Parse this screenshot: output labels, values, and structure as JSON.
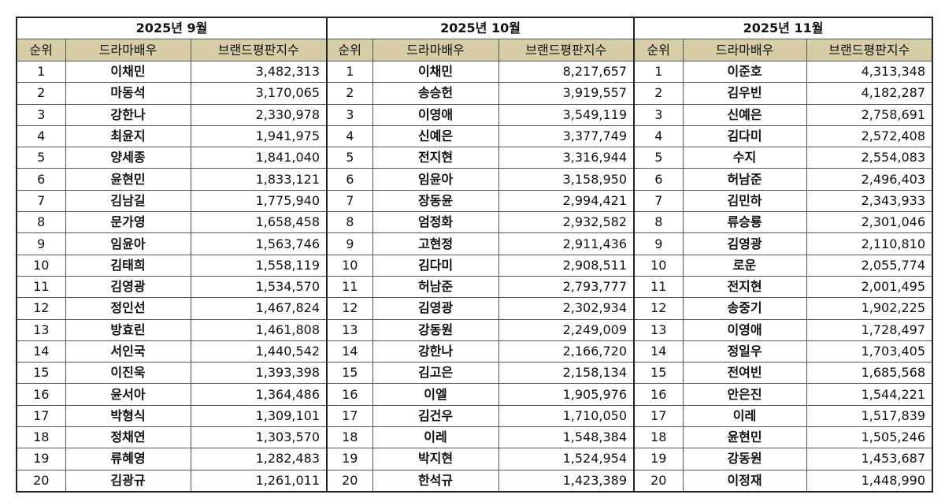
{
  "colors": {
    "header_bg": "#d6cca6",
    "border": "#222222"
  },
  "columns": [
    "순위",
    "드라마배우",
    "브랜드평판지수"
  ],
  "months": [
    {
      "title": "2025년 9월",
      "rows": [
        {
          "rank": "1",
          "name": "이채민",
          "score": "3,482,313"
        },
        {
          "rank": "2",
          "name": "마동석",
          "score": "3,170,065"
        },
        {
          "rank": "3",
          "name": "강한나",
          "score": "2,330,978"
        },
        {
          "rank": "4",
          "name": "최윤지",
          "score": "1,941,975"
        },
        {
          "rank": "5",
          "name": "양세종",
          "score": "1,841,040"
        },
        {
          "rank": "6",
          "name": "윤현민",
          "score": "1,833,121"
        },
        {
          "rank": "7",
          "name": "김남길",
          "score": "1,775,940"
        },
        {
          "rank": "8",
          "name": "문가영",
          "score": "1,658,458"
        },
        {
          "rank": "9",
          "name": "임윤아",
          "score": "1,563,746"
        },
        {
          "rank": "10",
          "name": "김태희",
          "score": "1,558,119"
        },
        {
          "rank": "11",
          "name": "김영광",
          "score": "1,534,570"
        },
        {
          "rank": "12",
          "name": "정인선",
          "score": "1,467,824"
        },
        {
          "rank": "13",
          "name": "방효린",
          "score": "1,461,808"
        },
        {
          "rank": "14",
          "name": "서인국",
          "score": "1,440,542"
        },
        {
          "rank": "15",
          "name": "이진욱",
          "score": "1,393,398"
        },
        {
          "rank": "16",
          "name": "윤서아",
          "score": "1,364,486"
        },
        {
          "rank": "17",
          "name": "박형식",
          "score": "1,309,101"
        },
        {
          "rank": "18",
          "name": "정채연",
          "score": "1,303,570"
        },
        {
          "rank": "19",
          "name": "류혜영",
          "score": "1,282,483"
        },
        {
          "rank": "20",
          "name": "김광규",
          "score": "1,261,011"
        }
      ]
    },
    {
      "title": "2025년 10월",
      "rows": [
        {
          "rank": "1",
          "name": "이채민",
          "score": "8,217,657"
        },
        {
          "rank": "2",
          "name": "송승헌",
          "score": "3,919,557"
        },
        {
          "rank": "3",
          "name": "이영애",
          "score": "3,549,119"
        },
        {
          "rank": "4",
          "name": "신예은",
          "score": "3,377,749"
        },
        {
          "rank": "5",
          "name": "전지현",
          "score": "3,316,944"
        },
        {
          "rank": "6",
          "name": "임윤아",
          "score": "3,158,950"
        },
        {
          "rank": "7",
          "name": "장동윤",
          "score": "2,994,421"
        },
        {
          "rank": "8",
          "name": "엄정화",
          "score": "2,932,582"
        },
        {
          "rank": "9",
          "name": "고현정",
          "score": "2,911,436"
        },
        {
          "rank": "10",
          "name": "김다미",
          "score": "2,908,511"
        },
        {
          "rank": "11",
          "name": "허남준",
          "score": "2,793,777"
        },
        {
          "rank": "12",
          "name": "김영광",
          "score": "2,302,934"
        },
        {
          "rank": "13",
          "name": "강동원",
          "score": "2,249,009"
        },
        {
          "rank": "14",
          "name": "강한나",
          "score": "2,166,720"
        },
        {
          "rank": "15",
          "name": "김고은",
          "score": "2,158,134"
        },
        {
          "rank": "16",
          "name": "이엘",
          "score": "1,905,976"
        },
        {
          "rank": "17",
          "name": "김건우",
          "score": "1,710,050"
        },
        {
          "rank": "18",
          "name": "이레",
          "score": "1,548,384"
        },
        {
          "rank": "19",
          "name": "박지현",
          "score": "1,524,954"
        },
        {
          "rank": "20",
          "name": "한석규",
          "score": "1,423,389"
        }
      ]
    },
    {
      "title": "2025년 11월",
      "rows": [
        {
          "rank": "1",
          "name": "이준호",
          "score": "4,313,348"
        },
        {
          "rank": "2",
          "name": "김우빈",
          "score": "4,182,287"
        },
        {
          "rank": "3",
          "name": "신예은",
          "score": "2,758,691"
        },
        {
          "rank": "4",
          "name": "김다미",
          "score": "2,572,408"
        },
        {
          "rank": "5",
          "name": "수지",
          "score": "2,554,083"
        },
        {
          "rank": "6",
          "name": "허남준",
          "score": "2,496,403"
        },
        {
          "rank": "7",
          "name": "김민하",
          "score": "2,343,933"
        },
        {
          "rank": "8",
          "name": "류승룡",
          "score": "2,301,046"
        },
        {
          "rank": "9",
          "name": "김영광",
          "score": "2,110,810"
        },
        {
          "rank": "10",
          "name": "로운",
          "score": "2,055,774"
        },
        {
          "rank": "11",
          "name": "전지현",
          "score": "2,001,495"
        },
        {
          "rank": "12",
          "name": "송중기",
          "score": "1,902,225"
        },
        {
          "rank": "13",
          "name": "이영애",
          "score": "1,728,497"
        },
        {
          "rank": "14",
          "name": "정일우",
          "score": "1,703,405"
        },
        {
          "rank": "15",
          "name": "전여빈",
          "score": "1,685,568"
        },
        {
          "rank": "16",
          "name": "안은진",
          "score": "1,544,221"
        },
        {
          "rank": "17",
          "name": "이레",
          "score": "1,517,839"
        },
        {
          "rank": "18",
          "name": "윤현민",
          "score": "1,505,246"
        },
        {
          "rank": "19",
          "name": "강동원",
          "score": "1,453,687"
        },
        {
          "rank": "20",
          "name": "이정재",
          "score": "1,448,990"
        }
      ]
    }
  ]
}
